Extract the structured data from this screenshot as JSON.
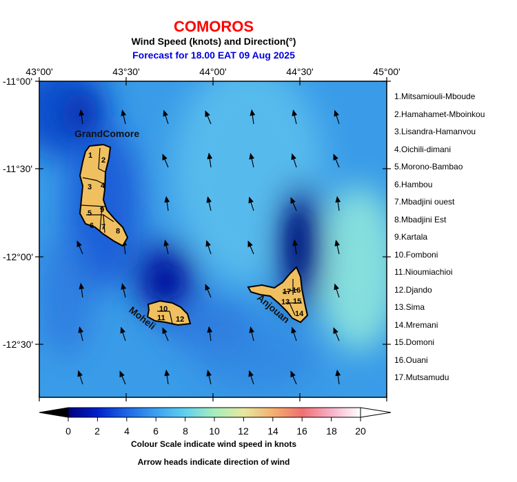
{
  "header": {
    "title": "COMOROS",
    "subtitle": "Wind Speed (knots) and Direction(°)",
    "forecast": "Forecast for  18.00 EAT 09 Aug 2025"
  },
  "axes": {
    "lon_labels": [
      "43°00'",
      "43°30'",
      "44°00'",
      "44°30'",
      "45°00'"
    ],
    "lat_labels": [
      "-11°00'",
      "-11°30'",
      "-12°00'",
      "-12°30'"
    ]
  },
  "map_labels": {
    "grandcomore": "GrandComore",
    "moheli": "Moheli",
    "anjouan": "Anjouan",
    "district_numbers": [
      "1",
      "2",
      "3",
      "4",
      "5",
      "6",
      "7",
      "8",
      "9",
      "10",
      "11",
      "12",
      "13",
      "14",
      "15",
      "16",
      "17"
    ]
  },
  "legend": [
    "1.Mitsamiouli-Mboude",
    "2.Hamahamet-Mboinkou",
    "3.Lisandra-Hamanvou",
    "4.Oichili-dimani",
    "5.Morono-Bambao",
    "6.Hambou",
    "7.Mbadjini ouest",
    "8.Mbadjini Est",
    "9.Kartala",
    "10.Fomboni",
    "11.Nioumiachioi",
    "12.Djando",
    "13.Sima",
    "14.Mremani",
    "15.Domoni",
    "16.Ouani",
    "17.Mutsamudu"
  ],
  "colorbar": {
    "ticks": [
      "0",
      "2",
      "4",
      "6",
      "8",
      "10",
      "12",
      "14",
      "16",
      "18",
      "20"
    ],
    "colors": [
      "#000080",
      "#0022cc",
      "#1e66e6",
      "#3ba0f0",
      "#5fd0ee",
      "#a6eebc",
      "#e6e8a0",
      "#f4b070",
      "#f07070",
      "#f8b0c8",
      "#ffffff"
    ]
  },
  "notes": {
    "scale": "Colour Scale indicate wind speed in knots",
    "arrows": "Arrow heads indicate direction of wind"
  },
  "colors": {
    "land": "#f0c060",
    "title": "#ff0000",
    "forecast": "#0000dd"
  }
}
